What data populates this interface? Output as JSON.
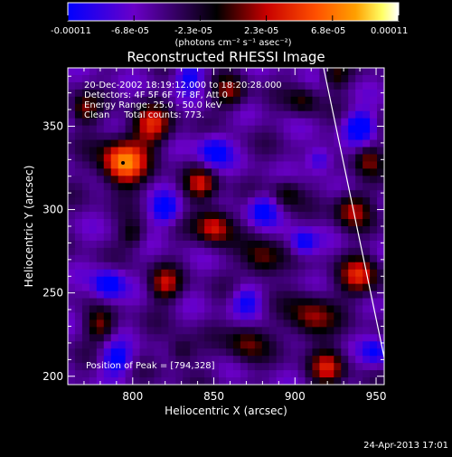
{
  "colorbar": {
    "tick_labels": [
      "-0.00011",
      "-6.8e-05",
      "-2.3e-05",
      "2.3e-05",
      "6.8e-05",
      "0.00011"
    ],
    "unit_label": "(photons cm⁻² s⁻¹ asec⁻²)",
    "colors": [
      "#0000ff",
      "#6a00c8",
      "#000000",
      "#c80000",
      "#ff5000",
      "#ffa000",
      "#ffff64",
      "#ffffff"
    ]
  },
  "chart_data": {
    "type": "heatmap",
    "title": "Reconstructed RHESSI Image",
    "xlabel": "Heliocentric X (arcsec)",
    "ylabel": "Heliocentric Y (arcsec)",
    "xlim": [
      760,
      955
    ],
    "ylim": [
      195,
      385
    ],
    "x_ticks": [
      800,
      850,
      900,
      950
    ],
    "y_ticks": [
      200,
      250,
      300,
      350
    ],
    "colorbar_range": [
      -0.00011,
      0.00011
    ],
    "annotations": [
      "20-Dec-2002 18:19:12.000 to 18:20:28.000",
      "Detectors: 4F 5F 6F 7F 8F, Att 0",
      "Energy Range: 25.0 - 50.0 keV",
      "Clean     Total counts: 773."
    ],
    "peak_label": "Position of Peak = [794,328]",
    "peak": [
      794,
      328
    ]
  },
  "footer": {
    "timestamp": "24-Apr-2013 17:01"
  }
}
